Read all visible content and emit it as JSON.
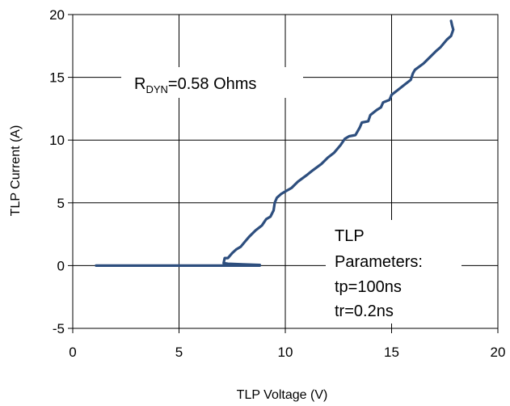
{
  "chart_data": {
    "type": "line",
    "title": "",
    "xlabel": "TLP Voltage (V)",
    "ylabel": "TLP Current (A)",
    "xlim": [
      0,
      20
    ],
    "ylim": [
      -5,
      20
    ],
    "xticks": [
      0,
      5,
      10,
      15,
      20
    ],
    "yticks": [
      -5,
      0,
      5,
      10,
      15,
      20
    ],
    "grid": true,
    "line_color": "#2d4e7e",
    "series": [
      {
        "x": [
          1.1,
          3.0,
          5.0,
          7.0,
          8.0,
          8.8,
          8.8,
          8.0,
          7.3,
          7.1,
          7.15,
          7.3,
          7.5,
          7.7,
          7.9,
          8.1,
          8.3,
          8.6,
          8.9,
          9.1,
          9.3,
          9.45,
          9.5,
          9.6,
          9.8,
          10.0,
          10.3,
          10.6,
          11.0,
          11.3,
          11.7,
          12.0,
          12.3,
          12.6,
          12.8,
          13.0,
          13.3,
          13.5,
          13.6,
          13.9,
          14.0,
          14.3,
          14.5,
          14.6,
          14.9,
          15.0,
          15.3,
          15.6,
          15.9,
          16.0,
          16.1,
          16.5,
          16.8,
          17.1,
          17.3,
          17.6,
          17.8,
          17.9,
          17.85,
          17.8
        ],
        "y": [
          0.0,
          0.0,
          0.0,
          0.0,
          0.0,
          0.0,
          0.05,
          0.1,
          0.15,
          0.2,
          0.6,
          0.6,
          1.0,
          1.3,
          1.5,
          1.9,
          2.3,
          2.8,
          3.2,
          3.7,
          3.9,
          4.4,
          5.0,
          5.4,
          5.7,
          5.9,
          6.2,
          6.7,
          7.2,
          7.6,
          8.1,
          8.6,
          9.0,
          9.6,
          10.1,
          10.3,
          10.4,
          11.0,
          11.4,
          11.5,
          12.0,
          12.4,
          12.6,
          13.0,
          13.2,
          13.6,
          14.0,
          14.4,
          14.8,
          15.3,
          15.6,
          16.1,
          16.6,
          17.1,
          17.4,
          18.0,
          18.3,
          18.8,
          19.1,
          19.5
        ]
      }
    ],
    "annotations": {
      "rdyn_main": "R",
      "rdyn_sub": "DYN",
      "rdyn_value": "=0.58  Ohms",
      "tlp_params": [
        "TLP",
        "Parameters:",
        "tp=100ns",
        "tr=0.2ns"
      ]
    }
  }
}
